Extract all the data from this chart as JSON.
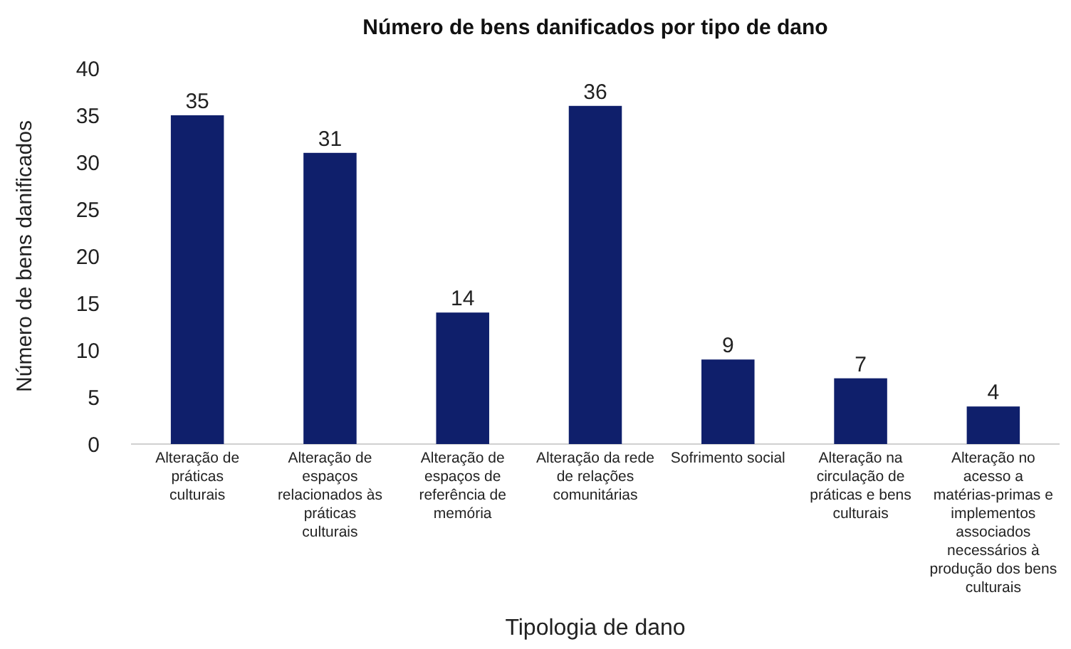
{
  "chart_data": {
    "type": "bar",
    "title": "Número de bens danificados por tipo de dano",
    "xlabel": "Tipologia de dano",
    "ylabel": "Número de bens danificados",
    "categories": [
      "Alteração de práticas culturais",
      "Alteração de espaços relacionados às práticas culturais",
      "Alteração de espaços de referência de memória",
      "Alteração da rede de relações comunitárias",
      "Sofrimento social",
      "Alteração na circulação de práticas e bens culturais",
      "Alteração no acesso a matérias-primas e implementos associados necessários à produção dos bens culturais"
    ],
    "values": [
      35,
      31,
      14,
      36,
      9,
      7,
      4
    ],
    "color": "#0f1f6b",
    "ylim": [
      0,
      40
    ],
    "yticks": [
      0,
      5,
      10,
      15,
      20,
      25,
      30,
      35,
      40
    ],
    "data_labels": true,
    "grid": false
  }
}
